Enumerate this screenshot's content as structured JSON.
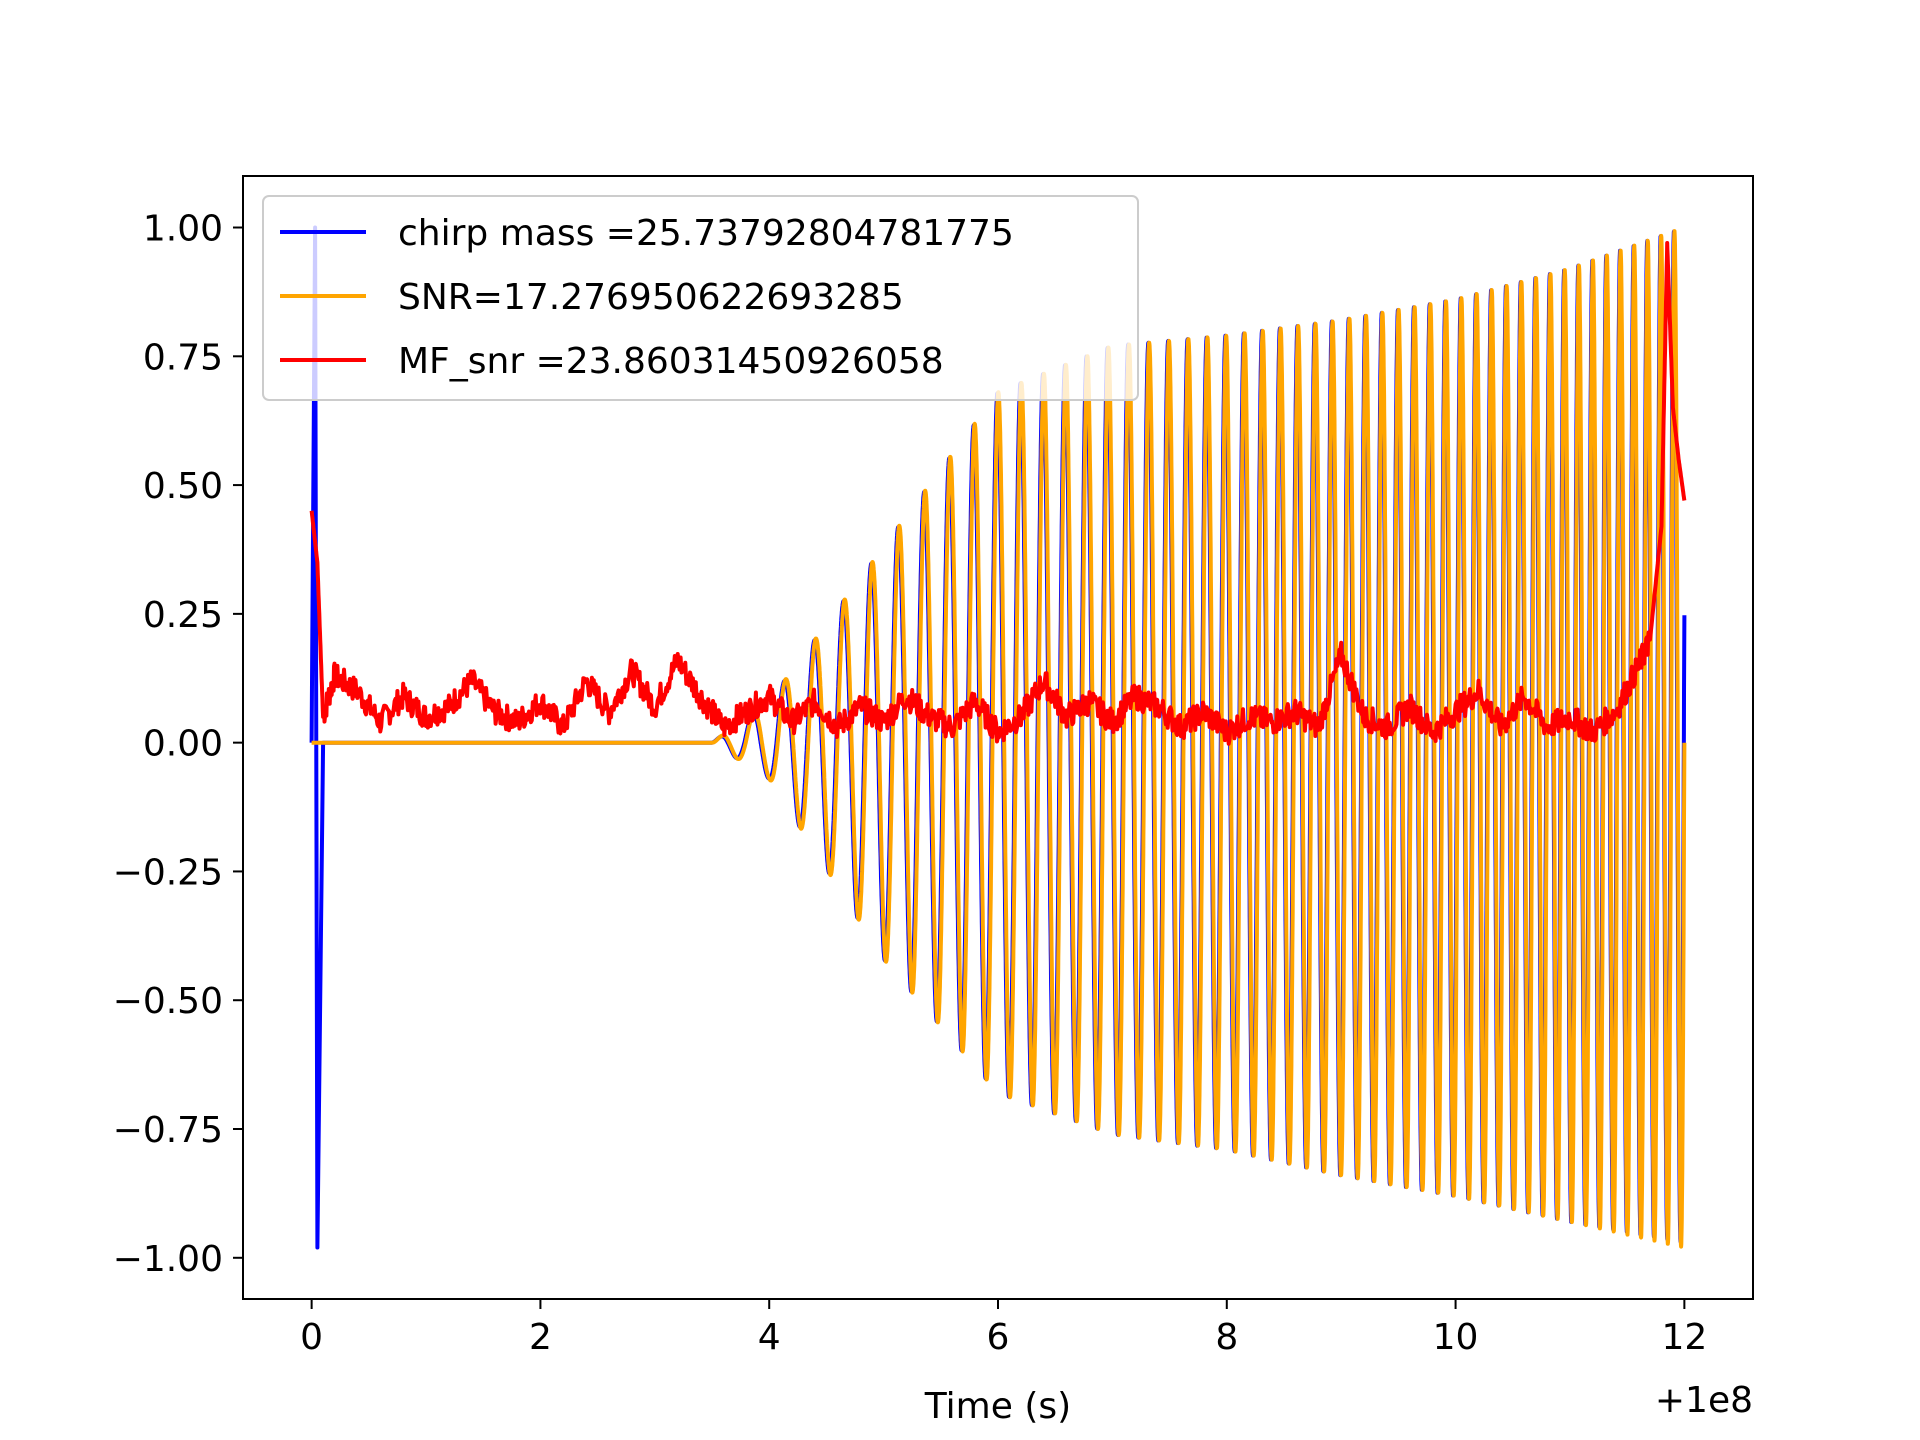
{
  "chart_data": {
    "type": "line",
    "title": "",
    "xlabel": "Time (s)",
    "ylabel": "",
    "x_offset_label": "+1e8",
    "xlim": [
      -0.6,
      12.6
    ],
    "ylim": [
      -1.08,
      1.1
    ],
    "xticks": [
      0,
      2,
      4,
      6,
      8,
      10,
      12
    ],
    "xtick_labels": [
      "0",
      "2",
      "4",
      "6",
      "8",
      "10",
      "12"
    ],
    "yticks": [
      1.0,
      0.75,
      0.5,
      0.25,
      0.0,
      -0.25,
      -0.5,
      -0.75,
      -1.0
    ],
    "ytick_labels": [
      "1.00",
      "0.75",
      "0.50",
      "0.25",
      "0.00",
      "−0.25",
      "−0.50",
      "−0.75",
      "−1.00"
    ],
    "grid": false,
    "legend_position": "top-left",
    "series": [
      {
        "name": "chirp mass =25.73792804781775",
        "color": "#0000ff",
        "description_points": {
          "x": [
            0.0,
            0.03,
            0.05,
            0.1,
            3.5,
            4.0,
            5.0,
            6.0,
            7.0,
            8.0,
            9.0,
            10.0,
            11.0,
            12.0
          ],
          "envelope_upper": [
            0.0,
            1.0,
            -0.98,
            0.0,
            0.0,
            0.08,
            0.38,
            0.68,
            0.77,
            0.79,
            0.82,
            0.86,
            0.92,
            1.0
          ],
          "envelope_lower": [
            0.0,
            1.0,
            -0.98,
            0.0,
            0.0,
            -0.07,
            -0.42,
            -0.68,
            -0.76,
            -0.79,
            -0.84,
            -0.88,
            -0.93,
            -0.97
          ]
        }
      },
      {
        "name": "SNR=17.276950622693285",
        "color": "#ffa500",
        "description_points": {
          "x": [
            0.0,
            3.5,
            4.0,
            5.0,
            6.0,
            7.0,
            8.0,
            9.0,
            10.0,
            11.0,
            12.0
          ],
          "envelope_upper": [
            0.0,
            0.0,
            0.08,
            0.38,
            0.68,
            0.77,
            0.79,
            0.82,
            0.86,
            0.92,
            1.0
          ],
          "envelope_lower": [
            0.0,
            0.0,
            -0.07,
            -0.42,
            -0.68,
            -0.76,
            -0.79,
            -0.84,
            -0.88,
            -0.93,
            -0.98
          ]
        }
      },
      {
        "name": "MF_snr =23.86031450926058",
        "color": "#ff0000",
        "x": [
          0.0,
          0.05,
          0.1,
          0.2,
          0.4,
          0.6,
          0.8,
          1.0,
          1.2,
          1.4,
          1.6,
          1.8,
          2.0,
          2.2,
          2.4,
          2.6,
          2.8,
          3.0,
          3.2,
          3.4,
          3.6,
          3.8,
          4.0,
          4.2,
          4.4,
          4.6,
          4.8,
          5.0,
          5.2,
          5.4,
          5.6,
          5.8,
          6.0,
          6.2,
          6.4,
          6.6,
          6.8,
          7.0,
          7.2,
          7.4,
          7.6,
          7.8,
          8.0,
          8.2,
          8.4,
          8.6,
          8.8,
          9.0,
          9.2,
          9.4,
          9.6,
          9.8,
          10.0,
          10.2,
          10.4,
          10.6,
          10.8,
          11.0,
          11.2,
          11.4,
          11.6,
          11.7,
          11.8,
          11.85,
          11.9,
          11.95,
          12.0
        ],
        "values": [
          0.45,
          0.35,
          0.05,
          0.13,
          0.1,
          0.04,
          0.09,
          0.05,
          0.07,
          0.12,
          0.06,
          0.04,
          0.08,
          0.03,
          0.12,
          0.06,
          0.14,
          0.07,
          0.16,
          0.09,
          0.03,
          0.06,
          0.09,
          0.04,
          0.08,
          0.03,
          0.07,
          0.04,
          0.09,
          0.05,
          0.03,
          0.08,
          0.02,
          0.05,
          0.12,
          0.05,
          0.08,
          0.04,
          0.09,
          0.07,
          0.03,
          0.06,
          0.02,
          0.05,
          0.04,
          0.06,
          0.03,
          0.17,
          0.05,
          0.03,
          0.07,
          0.02,
          0.06,
          0.1,
          0.03,
          0.09,
          0.03,
          0.05,
          0.02,
          0.06,
          0.15,
          0.2,
          0.42,
          0.97,
          0.65,
          0.55,
          0.47
        ]
      }
    ]
  }
}
